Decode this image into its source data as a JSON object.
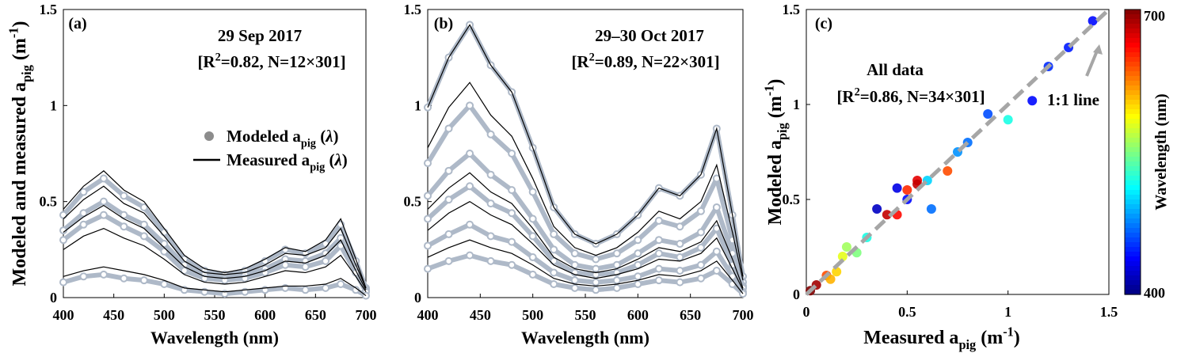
{
  "chart_data": [
    {
      "type": "line",
      "panel_label": "(a)",
      "title": "29 Sep 2017",
      "annotation": [
        "[R",
        "2",
        "=0.82, N=12×301]"
      ],
      "xlabel": "Wavelength (nm)",
      "ylabel": [
        "Modeled and measured a",
        "pig",
        " (m",
        "-1",
        ")"
      ],
      "x": [
        400,
        420,
        440,
        460,
        480,
        500,
        520,
        540,
        560,
        580,
        600,
        620,
        640,
        660,
        675,
        690,
        700
      ],
      "xlim": [
        400,
        700
      ],
      "xticks": [
        400,
        450,
        500,
        550,
        600,
        650,
        700
      ],
      "ylim": [
        0,
        1.5
      ],
      "yticks": [
        0,
        0.5,
        1,
        1.5
      ],
      "legend": [
        {
          "name": [
            "Modeled a",
            "pig",
            " (",
            "λ",
            ")"
          ],
          "color": "#8c8c8c",
          "marker": "circle"
        },
        {
          "name": [
            "Measured a",
            "pig",
            " (",
            "λ",
            ")"
          ],
          "color": "#000000",
          "marker": "none"
        }
      ],
      "series": [
        {
          "color": "#aeb9c8",
          "marker": "circle",
          "values": [
            0.43,
            0.55,
            0.62,
            0.53,
            0.47,
            0.34,
            0.2,
            0.14,
            0.12,
            0.14,
            0.19,
            0.25,
            0.23,
            0.28,
            0.38,
            0.19,
            0.05
          ]
        },
        {
          "color": "#aeb9c8",
          "marker": "circle",
          "values": [
            0.35,
            0.44,
            0.5,
            0.43,
            0.38,
            0.28,
            0.17,
            0.12,
            0.1,
            0.12,
            0.15,
            0.2,
            0.19,
            0.23,
            0.31,
            0.15,
            0.04
          ]
        },
        {
          "color": "#aeb9c8",
          "marker": "circle",
          "values": [
            0.3,
            0.38,
            0.43,
            0.37,
            0.32,
            0.24,
            0.14,
            0.1,
            0.09,
            0.1,
            0.13,
            0.17,
            0.16,
            0.19,
            0.27,
            0.13,
            0.03
          ]
        },
        {
          "color": "#aeb9c8",
          "marker": "circle",
          "values": [
            0.08,
            0.11,
            0.12,
            0.1,
            0.09,
            0.07,
            0.04,
            0.03,
            0.02,
            0.03,
            0.04,
            0.05,
            0.04,
            0.05,
            0.07,
            0.04,
            0.01
          ]
        },
        {
          "color": "#000000",
          "marker": "none",
          "values": [
            0.46,
            0.58,
            0.66,
            0.56,
            0.5,
            0.36,
            0.22,
            0.15,
            0.13,
            0.15,
            0.2,
            0.26,
            0.24,
            0.3,
            0.41,
            0.2,
            0.05
          ]
        },
        {
          "color": "#000000",
          "marker": "none",
          "values": [
            0.41,
            0.51,
            0.58,
            0.49,
            0.44,
            0.32,
            0.19,
            0.13,
            0.12,
            0.13,
            0.17,
            0.23,
            0.22,
            0.26,
            0.36,
            0.17,
            0.05
          ]
        },
        {
          "color": "#000000",
          "marker": "none",
          "values": [
            0.34,
            0.42,
            0.48,
            0.41,
            0.36,
            0.26,
            0.16,
            0.11,
            0.1,
            0.11,
            0.14,
            0.19,
            0.18,
            0.22,
            0.3,
            0.14,
            0.04
          ]
        },
        {
          "color": "#000000",
          "marker": "none",
          "values": [
            0.25,
            0.32,
            0.36,
            0.31,
            0.27,
            0.2,
            0.12,
            0.08,
            0.07,
            0.08,
            0.11,
            0.14,
            0.13,
            0.16,
            0.22,
            0.11,
            0.03
          ]
        },
        {
          "color": "#000000",
          "marker": "none",
          "values": [
            0.11,
            0.14,
            0.16,
            0.14,
            0.12,
            0.09,
            0.05,
            0.04,
            0.03,
            0.04,
            0.05,
            0.06,
            0.06,
            0.07,
            0.1,
            0.05,
            0.01
          ]
        }
      ]
    },
    {
      "type": "line",
      "panel_label": "(b)",
      "title": "29–30 Oct 2017",
      "annotation": [
        "[R",
        "2",
        "=0.89, N=22×301]"
      ],
      "xlabel": "Wavelength (nm)",
      "x": [
        400,
        420,
        440,
        460,
        480,
        500,
        520,
        540,
        560,
        580,
        600,
        620,
        640,
        660,
        675,
        690,
        700
      ],
      "xlim": [
        400,
        700
      ],
      "xticks": [
        400,
        450,
        500,
        550,
        600,
        650,
        700
      ],
      "ylim": [
        0,
        1.5
      ],
      "yticks": [
        0,
        0.5,
        1,
        1.5
      ],
      "series": [
        {
          "color": "#aeb9c8",
          "marker": "circle",
          "values": [
            0.99,
            1.25,
            1.42,
            1.21,
            1.07,
            0.78,
            0.47,
            0.33,
            0.28,
            0.33,
            0.43,
            0.57,
            0.53,
            0.64,
            0.88,
            0.43,
            0.11
          ]
        },
        {
          "color": "#aeb9c8",
          "marker": "circle",
          "values": [
            0.7,
            0.88,
            1.0,
            0.85,
            0.75,
            0.55,
            0.33,
            0.23,
            0.2,
            0.23,
            0.3,
            0.4,
            0.37,
            0.45,
            0.62,
            0.3,
            0.08
          ]
        },
        {
          "color": "#aeb9c8",
          "marker": "circle",
          "values": [
            0.53,
            0.66,
            0.75,
            0.64,
            0.56,
            0.41,
            0.25,
            0.17,
            0.15,
            0.17,
            0.23,
            0.3,
            0.28,
            0.34,
            0.47,
            0.23,
            0.06
          ]
        },
        {
          "color": "#aeb9c8",
          "marker": "circle",
          "values": [
            0.41,
            0.51,
            0.58,
            0.49,
            0.44,
            0.32,
            0.19,
            0.13,
            0.12,
            0.13,
            0.17,
            0.23,
            0.21,
            0.26,
            0.36,
            0.17,
            0.05
          ]
        },
        {
          "color": "#aeb9c8",
          "marker": "circle",
          "values": [
            0.27,
            0.33,
            0.38,
            0.32,
            0.29,
            0.21,
            0.13,
            0.09,
            0.08,
            0.09,
            0.11,
            0.15,
            0.14,
            0.17,
            0.24,
            0.11,
            0.03
          ]
        },
        {
          "color": "#aeb9c8",
          "marker": "circle",
          "values": [
            0.15,
            0.19,
            0.22,
            0.19,
            0.17,
            0.12,
            0.07,
            0.05,
            0.04,
            0.05,
            0.07,
            0.09,
            0.08,
            0.1,
            0.14,
            0.07,
            0.02
          ]
        },
        {
          "color": "#000000",
          "marker": "none",
          "values": [
            0.99,
            1.25,
            1.42,
            1.21,
            1.07,
            0.78,
            0.47,
            0.33,
            0.28,
            0.33,
            0.43,
            0.57,
            0.53,
            0.64,
            0.88,
            0.43,
            0.11
          ]
        },
        {
          "color": "#000000",
          "marker": "none",
          "values": [
            0.78,
            0.99,
            1.12,
            0.95,
            0.84,
            0.62,
            0.37,
            0.26,
            0.22,
            0.26,
            0.34,
            0.45,
            0.41,
            0.5,
            0.69,
            0.34,
            0.09
          ]
        },
        {
          "color": "#000000",
          "marker": "none",
          "values": [
            0.46,
            0.57,
            0.65,
            0.55,
            0.49,
            0.36,
            0.21,
            0.15,
            0.13,
            0.15,
            0.2,
            0.26,
            0.24,
            0.29,
            0.4,
            0.2,
            0.05
          ]
        },
        {
          "color": "#000000",
          "marker": "none",
          "values": [
            0.35,
            0.44,
            0.5,
            0.43,
            0.38,
            0.28,
            0.17,
            0.12,
            0.1,
            0.12,
            0.15,
            0.2,
            0.19,
            0.23,
            0.31,
            0.15,
            0.04
          ]
        },
        {
          "color": "#000000",
          "marker": "none",
          "values": [
            0.21,
            0.26,
            0.3,
            0.26,
            0.23,
            0.17,
            0.1,
            0.07,
            0.06,
            0.07,
            0.09,
            0.12,
            0.11,
            0.14,
            0.19,
            0.09,
            0.02
          ]
        }
      ]
    },
    {
      "type": "scatter",
      "panel_label": "(c)",
      "annotations": [
        [
          "All data"
        ],
        [
          "[R",
          "2",
          "=0.86, N=34×301]"
        ],
        [
          "1:1 line"
        ]
      ],
      "xlabel": [
        "Measured a",
        "pig",
        " (m",
        "-1",
        ")"
      ],
      "ylabel": [
        "Modeled a",
        "pig",
        " (m",
        "-1",
        ")"
      ],
      "xlim": [
        0,
        1.5
      ],
      "xticks": [
        0,
        0.5,
        1,
        1.5
      ],
      "ylim": [
        0,
        1.5
      ],
      "yticks": [
        0,
        0.5,
        1,
        1.5
      ],
      "x": [
        0.02,
        0.05,
        0.1,
        0.15,
        0.2,
        0.25,
        0.3,
        0.35,
        0.4,
        0.45,
        0.5,
        0.55,
        0.6,
        0.62,
        0.7,
        0.75,
        0.8,
        0.9,
        1.0,
        1.12,
        1.2,
        1.3,
        1.42,
        0.45,
        0.5,
        0.55,
        0.12,
        0.18
      ],
      "y": [
        0.02,
        0.05,
        0.1,
        0.12,
        0.25,
        0.22,
        0.3,
        0.45,
        0.42,
        0.56,
        0.5,
        0.6,
        0.6,
        0.45,
        0.65,
        0.75,
        0.8,
        0.95,
        0.92,
        1.02,
        1.2,
        1.3,
        1.44,
        0.42,
        0.55,
        0.58,
        0.08,
        0.2
      ],
      "c": [
        700,
        690,
        640,
        600,
        560,
        550,
        520,
        420,
        680,
        430,
        440,
        670,
        500,
        470,
        640,
        480,
        470,
        460,
        520,
        440,
        450,
        445,
        440,
        660,
        650,
        680,
        610,
        580
      ],
      "clim": [
        400,
        700
      ],
      "cticks": [
        400,
        700
      ],
      "colormap": "jet",
      "colorbar_label": "Wavelength (nm)",
      "reference_line": {
        "color": "#a6a6a6",
        "dash": true
      }
    }
  ]
}
